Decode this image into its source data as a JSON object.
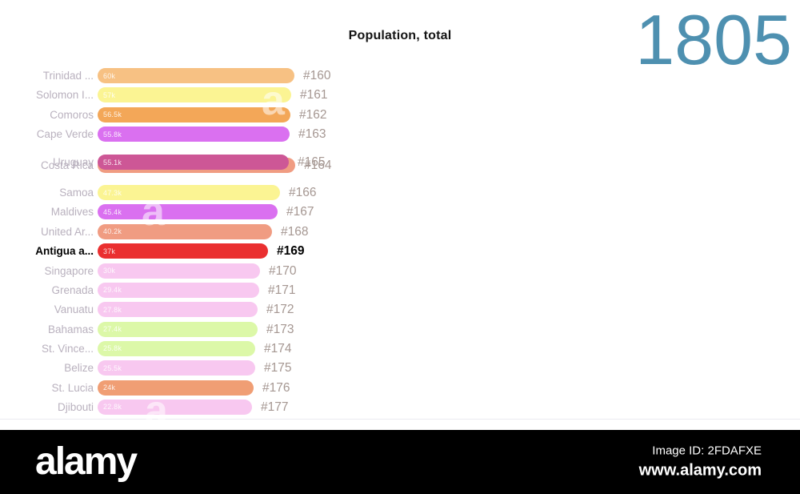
{
  "title": "Population, total",
  "year": "1805",
  "watermark_letter": "a",
  "footer": {
    "logo": "alamy",
    "image_id": "Image ID: 2FDAFXE",
    "url": "www.alamy.com"
  },
  "colors": {
    "year_text": "#4e90b0",
    "country_label": "#b9b1be",
    "rank_label": "#a59792",
    "emphasis_text": "#000000",
    "footer_bg": "#000000"
  },
  "chart_data": {
    "type": "bar",
    "orientation": "horizontal",
    "title": "Population, total",
    "value_format": "thousands with k suffix",
    "legend": "none",
    "grid": "off",
    "note": "bar-chart-race frame; ranks #160-#177; Costa Rica and Uruguay mid-swap overlap; Antigua highlighted",
    "rows": [
      {
        "country": "Trinidad ...",
        "value": 60000,
        "value_label": "60k",
        "rank": "#160",
        "color": "#f7c183",
        "slot": 0,
        "emphasis": false
      },
      {
        "country": "Solomon I...",
        "value": 57000,
        "value_label": "57k",
        "rank": "#161",
        "color": "#fbf493",
        "slot": 1,
        "emphasis": false
      },
      {
        "country": "Comoros",
        "value": 56500,
        "value_label": "56.5k",
        "rank": "#162",
        "color": "#f3a758",
        "slot": 2,
        "emphasis": false
      },
      {
        "country": "Cape Verde",
        "value": 55800,
        "value_label": "55.8k",
        "rank": "#163",
        "color": "#da70f0",
        "slot": 3,
        "emphasis": false
      },
      {
        "country": "Costa Rica",
        "value": 55300,
        "value_label": "55.3k",
        "rank": "#164",
        "color": "#f09c82",
        "slot": 4.62,
        "emphasis": false,
        "width_adjust": 8
      },
      {
        "country": "Uruguay",
        "value": 55100,
        "value_label": "55.1k",
        "rank": "#165",
        "color": "#cd5796",
        "slot": 4.45,
        "emphasis": false
      },
      {
        "country": "Samoa",
        "value": 47300,
        "value_label": "47.3k",
        "rank": "#166",
        "color": "#fbf493",
        "slot": 6,
        "emphasis": false
      },
      {
        "country": "Maldives",
        "value": 45400,
        "value_label": "45.4k",
        "rank": "#167",
        "color": "#da70f0",
        "slot": 7,
        "emphasis": false
      },
      {
        "country": "United Ar...",
        "value": 40200,
        "value_label": "40.2k",
        "rank": "#168",
        "color": "#f09c82",
        "slot": 8,
        "emphasis": false
      },
      {
        "country": "Antigua a...",
        "value": 37000,
        "value_label": "37k",
        "rank": "#169",
        "color": "#ea2f30",
        "slot": 9,
        "emphasis": true
      },
      {
        "country": "Singapore",
        "value": 30000,
        "value_label": "30k",
        "rank": "#170",
        "color": "#f8c8f0",
        "slot": 10,
        "emphasis": false
      },
      {
        "country": "Grenada",
        "value": 29400,
        "value_label": "29.4k",
        "rank": "#171",
        "color": "#f8c8f0",
        "slot": 11,
        "emphasis": false
      },
      {
        "country": "Vanuatu",
        "value": 27800,
        "value_label": "27.8k",
        "rank": "#172",
        "color": "#f8c8f0",
        "slot": 12,
        "emphasis": false
      },
      {
        "country": "Bahamas",
        "value": 27400,
        "value_label": "27.4k",
        "rank": "#173",
        "color": "#dcf8a8",
        "slot": 13,
        "emphasis": false
      },
      {
        "country": "St. Vince...",
        "value": 25800,
        "value_label": "25.8k",
        "rank": "#174",
        "color": "#dcf8a8",
        "slot": 14,
        "emphasis": false
      },
      {
        "country": "Belize",
        "value": 25500,
        "value_label": "25.5k",
        "rank": "#175",
        "color": "#f8c8f0",
        "slot": 15,
        "emphasis": false
      },
      {
        "country": "St. Lucia",
        "value": 24000,
        "value_label": "24k",
        "rank": "#176",
        "color": "#f09e74",
        "slot": 16,
        "emphasis": false
      },
      {
        "country": "Djibouti",
        "value": 22800,
        "value_label": "22.8k",
        "rank": "#177",
        "color": "#f8c8f0",
        "slot": 17,
        "emphasis": false
      }
    ]
  }
}
